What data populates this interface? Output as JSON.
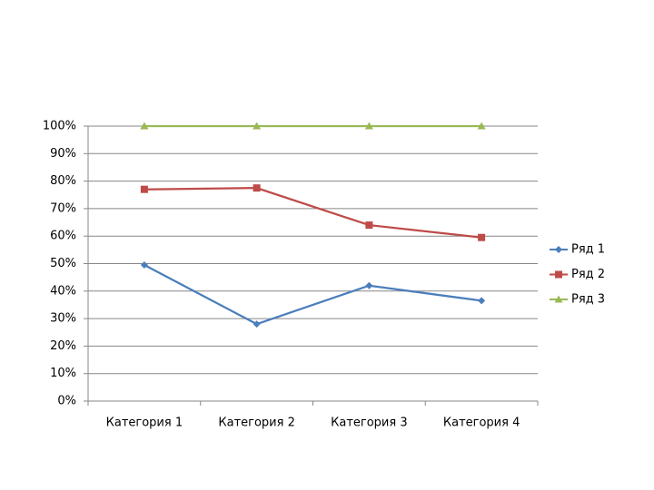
{
  "chart_data": {
    "type": "line",
    "categories": [
      "Категория 1",
      "Категория 2",
      "Категория 3",
      "Категория 4"
    ],
    "series": [
      {
        "name": "Ряд 1",
        "color": "#4a7ebb",
        "marker": "diamond",
        "values": [
          49.5,
          28,
          42,
          36.5
        ]
      },
      {
        "name": "Ряд 2",
        "color": "#be4b48",
        "marker": "square",
        "values": [
          77,
          77.5,
          64,
          59.5
        ]
      },
      {
        "name": "Ряд 3",
        "color": "#98b954",
        "marker": "triangle",
        "values": [
          100,
          100,
          100,
          100
        ]
      }
    ],
    "ylim": [
      0,
      100
    ],
    "yticks": [
      {
        "value": 0,
        "label": "0%"
      },
      {
        "value": 10,
        "label": "10%"
      },
      {
        "value": 20,
        "label": "20%"
      },
      {
        "value": 30,
        "label": "30%"
      },
      {
        "value": 40,
        "label": "40%"
      },
      {
        "value": 50,
        "label": "50%"
      },
      {
        "value": 60,
        "label": "60%"
      },
      {
        "value": 70,
        "label": "70%"
      },
      {
        "value": 80,
        "label": "80%"
      },
      {
        "value": 90,
        "label": "90%"
      },
      {
        "value": 100,
        "label": "100%"
      }
    ],
    "grid": true,
    "legend": "right"
  }
}
